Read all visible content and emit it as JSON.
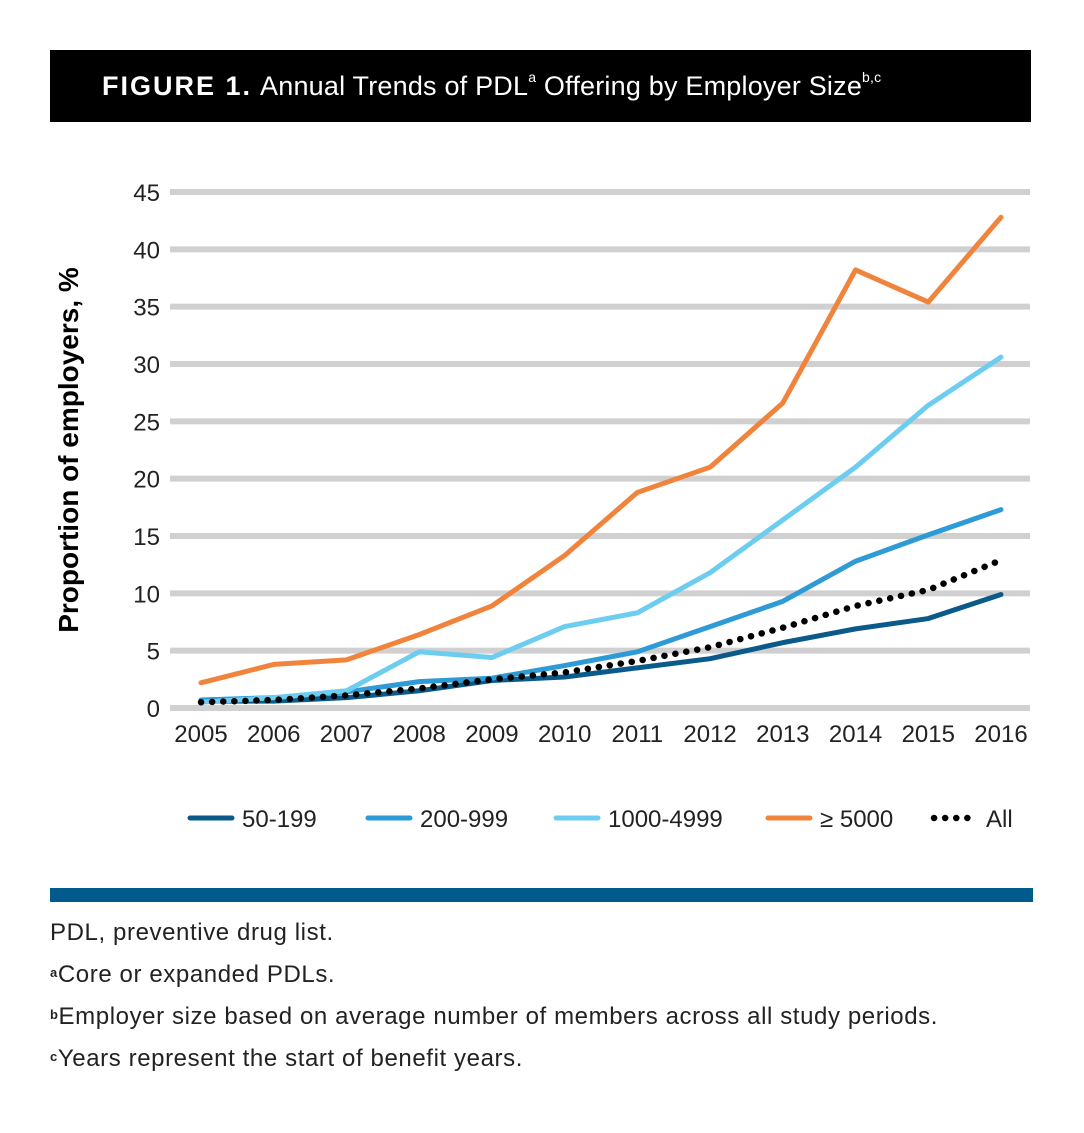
{
  "header": {
    "label": "FIGURE 1.",
    "title_pre": "Annual Trends of PDL",
    "title_sup1": "a",
    "title_mid": " Offering by Employer Size",
    "title_sup2": "b,c"
  },
  "chart_data": {
    "type": "line",
    "ylabel": "Proportion of employers, %",
    "xlabel": "",
    "ylim": [
      0,
      45
    ],
    "yticks": [
      0,
      5,
      10,
      15,
      20,
      25,
      30,
      35,
      40,
      45
    ],
    "grid": true,
    "legend_position": "bottom",
    "categories": [
      "2005",
      "2006",
      "2007",
      "2008",
      "2009",
      "2010",
      "2011",
      "2012",
      "2013",
      "2014",
      "2015",
      "2016"
    ],
    "series": [
      {
        "name": "50-199",
        "color": "#0a5a8a",
        "style": "solid",
        "values": [
          0.6,
          0.6,
          0.9,
          1.5,
          2.4,
          2.7,
          3.5,
          4.3,
          5.7,
          6.9,
          7.8,
          9.9
        ]
      },
      {
        "name": "200-999",
        "color": "#2e9bd6",
        "style": "solid",
        "values": [
          0.7,
          0.9,
          1.4,
          2.3,
          2.6,
          3.7,
          4.9,
          7.1,
          9.3,
          12.8,
          15.1,
          17.3
        ]
      },
      {
        "name": "1000-4999",
        "color": "#6dcdf0",
        "style": "solid",
        "values": [
          0.5,
          0.9,
          1.5,
          4.9,
          4.4,
          7.1,
          8.3,
          11.8,
          16.4,
          21.0,
          26.4,
          30.6
        ]
      },
      {
        "name": "≥ 5000",
        "color": "#f0843c",
        "style": "solid",
        "values": [
          2.2,
          3.8,
          4.2,
          6.4,
          8.9,
          13.3,
          18.8,
          21.0,
          26.6,
          38.2,
          35.4,
          42.8
        ]
      },
      {
        "name": "All",
        "color": "#000000",
        "style": "dotted",
        "values": [
          0.5,
          0.7,
          1.1,
          1.7,
          2.5,
          3.1,
          4.1,
          5.3,
          7.0,
          8.9,
          10.3,
          12.9
        ]
      }
    ]
  },
  "notes": [
    {
      "sup": "",
      "text": "PDL, preventive drug list."
    },
    {
      "sup": "a",
      "text": "Core or expanded PDLs."
    },
    {
      "sup": "b",
      "text": "Employer size based on average number of members across all study periods."
    },
    {
      "sup": "c",
      "text": "Years represent the start of benefit years."
    }
  ]
}
